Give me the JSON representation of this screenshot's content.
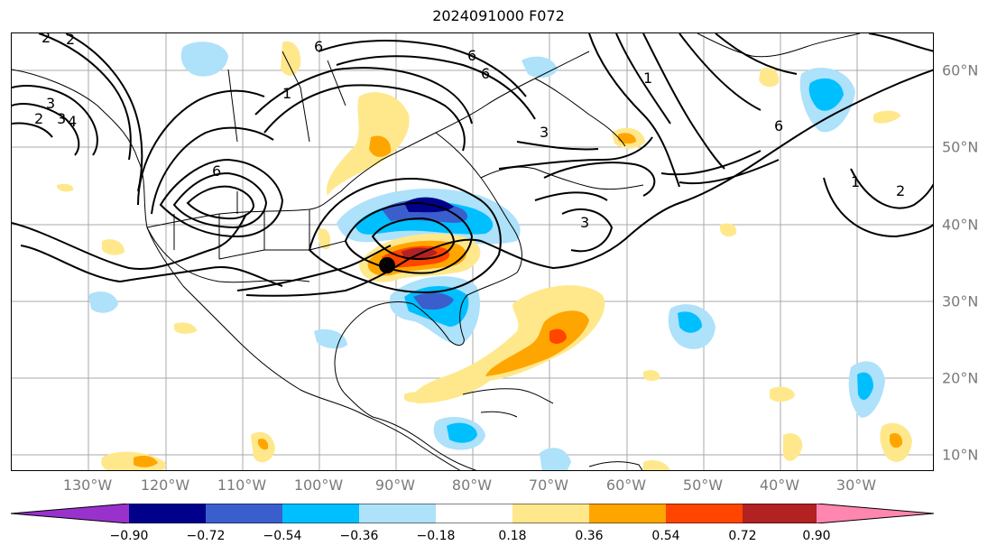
{
  "title": "2024091000 F072",
  "map": {
    "lon_labels": [
      "130°W",
      "120°W",
      "110°W",
      "100°W",
      "90°W",
      "80°W",
      "70°W",
      "60°W",
      "50°W",
      "40°W",
      "30°W"
    ],
    "lat_labels": [
      "60°N",
      "50°N",
      "40°N",
      "30°N",
      "20°N",
      "10°N"
    ],
    "contour_labels": [
      "2",
      "3",
      "4",
      "6",
      "1",
      "2",
      "3",
      "6",
      "6",
      "1",
      "2",
      "3",
      "6",
      "1",
      "2",
      "3",
      "6"
    ],
    "marker_icon": "storm-center-dot"
  },
  "colorbar": {
    "ticks": [
      "−0.90",
      "−0.72",
      "−0.54",
      "−0.36",
      "−0.18",
      "0.18",
      "0.36",
      "0.54",
      "0.72",
      "0.90"
    ],
    "colors": [
      "#9932cc",
      "#00008b",
      "#3a5fcd",
      "#00bfff",
      "#aee1fa",
      "#ffffff",
      "#ffe88c",
      "#ffa500",
      "#ff4500",
      "#b22222",
      "#ff86b0"
    ]
  }
}
